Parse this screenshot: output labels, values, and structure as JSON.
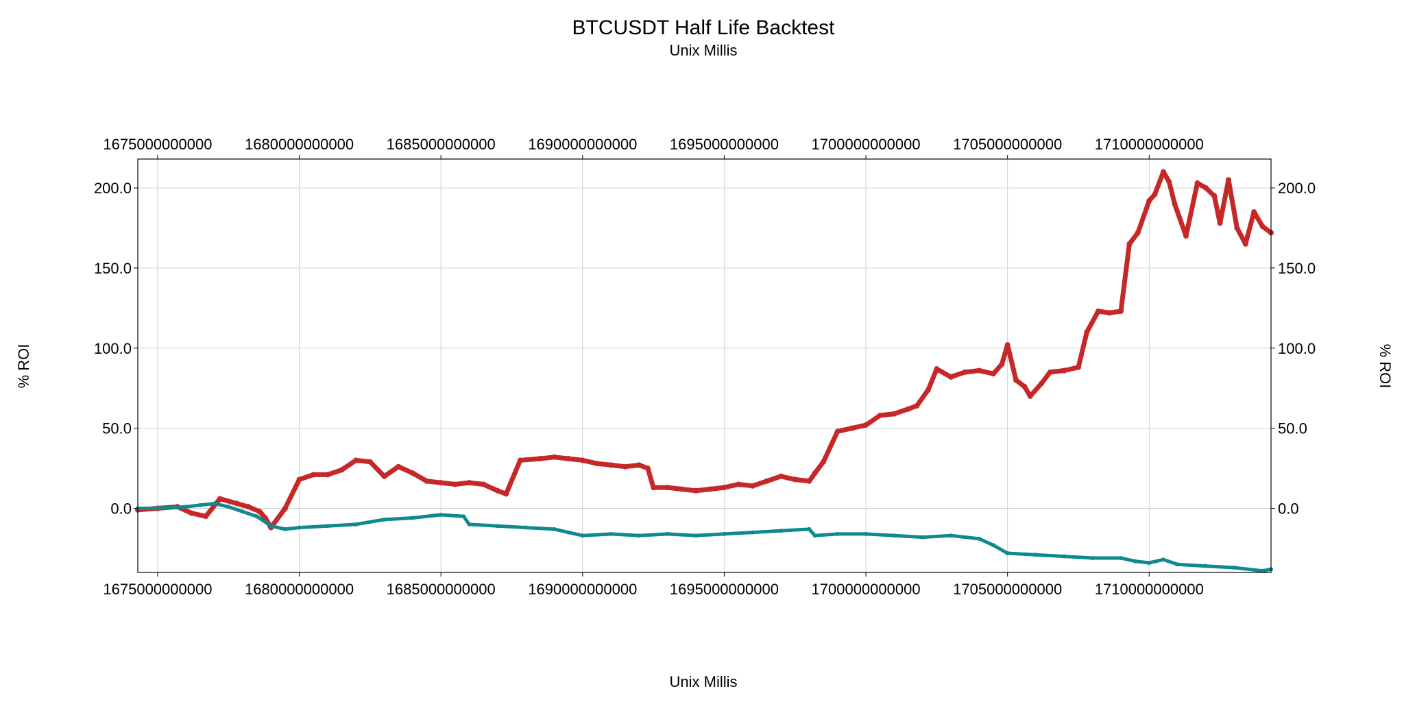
{
  "chart_data": {
    "type": "line",
    "title": "BTCUSDT Half Life Backtest",
    "subtitle": "Unix Millis",
    "xlabel": "Unix Millis",
    "ylabel_left": "% ROI",
    "ylabel_right": "% ROI",
    "xlim": [
      1674300000000,
      1714300000000
    ],
    "ylim": [
      -40,
      218
    ],
    "x_ticks": [
      1675000000000,
      1680000000000,
      1685000000000,
      1690000000000,
      1695000000000,
      1700000000000,
      1705000000000,
      1710000000000
    ],
    "x_tick_labels": [
      "1675000000000",
      "1680000000000",
      "1685000000000",
      "1690000000000",
      "1695000000000",
      "1700000000000",
      "1705000000000",
      "1710000000000"
    ],
    "y_ticks": [
      0,
      50,
      100,
      150,
      200
    ],
    "y_tick_labels": [
      "0.0",
      "50.0",
      "100.0",
      "150.0",
      "200.0"
    ],
    "grid": true,
    "series": [
      {
        "color": "#c62828",
        "x": [
          1674300000000,
          1675000000000,
          1675700000000,
          1676200000000,
          1676700000000,
          1677200000000,
          1677800000000,
          1678200000000,
          1678600000000,
          1678800000000,
          1679000000000,
          1679500000000,
          1680000000000,
          1680500000000,
          1681000000000,
          1681500000000,
          1682000000000,
          1682500000000,
          1683000000000,
          1683500000000,
          1684000000000,
          1684500000000,
          1685000000000,
          1685500000000,
          1686000000000,
          1686500000000,
          1687000000000,
          1687300000000,
          1687800000000,
          1688500000000,
          1689000000000,
          1689500000000,
          1690000000000,
          1690500000000,
          1691000000000,
          1691500000000,
          1692000000000,
          1692300000000,
          1692500000000,
          1693000000000,
          1693500000000,
          1694000000000,
          1694500000000,
          1695000000000,
          1695500000000,
          1696000000000,
          1696500000000,
          1697000000000,
          1697500000000,
          1698000000000,
          1698200000000,
          1698500000000,
          1699000000000,
          1699500000000,
          1700000000000,
          1700500000000,
          1701000000000,
          1701500000000,
          1701800000000,
          1702200000000,
          1702500000000,
          1703000000000,
          1703500000000,
          1704000000000,
          1704500000000,
          1704800000000,
          1705000000000,
          1705300000000,
          1705600000000,
          1705800000000,
          1706200000000,
          1706500000000,
          1707000000000,
          1707500000000,
          1707800000000,
          1708200000000,
          1708600000000,
          1709000000000,
          1709300000000,
          1709600000000,
          1710000000000,
          1710200000000,
          1710500000000,
          1710700000000,
          1710900000000,
          1711300000000,
          1711700000000,
          1712000000000,
          1712300000000,
          1712500000000,
          1712800000000,
          1713100000000,
          1713400000000,
          1713700000000,
          1714000000000,
          1714300000000
        ],
        "y": [
          -1,
          0,
          1,
          -3,
          -5,
          6,
          3,
          1,
          -2,
          -6,
          -12,
          0,
          18,
          21,
          21,
          24,
          30,
          29,
          20,
          26,
          22,
          17,
          16,
          15,
          16,
          15,
          11,
          9,
          30,
          31,
          32,
          31,
          30,
          28,
          27,
          26,
          27,
          25,
          13,
          13,
          12,
          11,
          12,
          13,
          15,
          14,
          17,
          20,
          18,
          17,
          22,
          29,
          48,
          50,
          52,
          58,
          59,
          62,
          64,
          74,
          87,
          82,
          85,
          86,
          84,
          90,
          102,
          80,
          76,
          70,
          78,
          85,
          86,
          88,
          110,
          123,
          122,
          123,
          165,
          172,
          192,
          196,
          210,
          204,
          190,
          170,
          203,
          200,
          195,
          178,
          205,
          175,
          165,
          185,
          176,
          172
        ]
      },
      {
        "color": "#0e8a8f",
        "x": [
          1674300000000,
          1675000000000,
          1676000000000,
          1676500000000,
          1677000000000,
          1677500000000,
          1678000000000,
          1678500000000,
          1679000000000,
          1679500000000,
          1680000000000,
          1681000000000,
          1682000000000,
          1683000000000,
          1684000000000,
          1685000000000,
          1685800000000,
          1686000000000,
          1687000000000,
          1688000000000,
          1689000000000,
          1689500000000,
          1690000000000,
          1691000000000,
          1692000000000,
          1693000000000,
          1694000000000,
          1695000000000,
          1696000000000,
          1697000000000,
          1698000000000,
          1698200000000,
          1699000000000,
          1700000000000,
          1701000000000,
          1702000000000,
          1703000000000,
          1704000000000,
          1704500000000,
          1705000000000,
          1706000000000,
          1707000000000,
          1708000000000,
          1709000000000,
          1709500000000,
          1710000000000,
          1710500000000,
          1711000000000,
          1712000000000,
          1713000000000,
          1714000000000,
          1714300000000
        ],
        "y": [
          0,
          0,
          1,
          2,
          3,
          1,
          -2,
          -5,
          -11,
          -13,
          -12,
          -11,
          -10,
          -7,
          -6,
          -4,
          -5,
          -10,
          -11,
          -12,
          -13,
          -15,
          -17,
          -16,
          -17,
          -16,
          -17,
          -16,
          -15,
          -14,
          -13,
          -17,
          -16,
          -16,
          -17,
          -18,
          -17,
          -19,
          -23,
          -28,
          -29,
          -30,
          -31,
          -31,
          -33,
          -34,
          -32,
          -35,
          -36,
          -37,
          -39,
          -38
        ]
      }
    ]
  }
}
